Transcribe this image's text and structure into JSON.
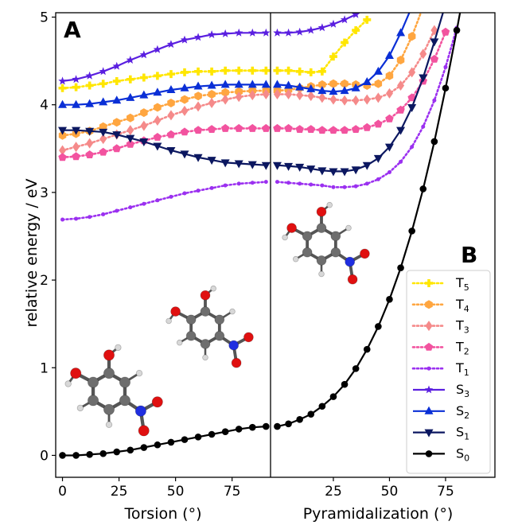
{
  "chart_data": {
    "type": "line",
    "ylabel": "relative energy / eV",
    "ylim": [
      -0.25,
      5.05
    ],
    "yticks": [
      "0",
      "1",
      "2",
      "3",
      "4",
      "5"
    ],
    "grid": false,
    "legend_position": "bottom-right",
    "panels": [
      {
        "label": "A",
        "xlabel": "Torsion (°)",
        "xlim": [
          -3,
          92
        ],
        "xticks": [
          "0",
          "25",
          "50",
          "75"
        ],
        "x": [
          0,
          6,
          12,
          18,
          24,
          30,
          36,
          42,
          48,
          54,
          60,
          66,
          72,
          78,
          84,
          90
        ],
        "series": [
          {
            "name": "T5",
            "values": [
              4.19,
              4.2,
              4.22,
              4.24,
              4.27,
              4.29,
              4.31,
              4.33,
              4.35,
              4.37,
              4.38,
              4.38,
              4.39,
              4.39,
              4.39,
              4.39
            ]
          },
          {
            "name": "T4",
            "values": [
              3.65,
              3.67,
              3.7,
              3.75,
              3.8,
              3.85,
              3.91,
              3.97,
              4.02,
              4.06,
              4.1,
              4.12,
              4.14,
              4.15,
              4.16,
              4.16
            ]
          },
          {
            "name": "T3",
            "values": [
              3.48,
              3.52,
              3.56,
              3.61,
              3.66,
              3.71,
              3.76,
              3.82,
              3.88,
              3.93,
              3.98,
              4.02,
              4.06,
              4.09,
              4.11,
              4.12
            ]
          },
          {
            "name": "T2",
            "values": [
              3.4,
              3.41,
              3.43,
              3.46,
              3.5,
              3.55,
              3.59,
              3.63,
              3.66,
              3.69,
              3.71,
              3.72,
              3.73,
              3.73,
              3.73,
              3.73
            ]
          },
          {
            "name": "T1",
            "values": [
              2.69,
              2.7,
              2.72,
              2.75,
              2.79,
              2.83,
              2.87,
              2.91,
              2.95,
              2.99,
              3.02,
              3.05,
              3.08,
              3.1,
              3.11,
              3.12
            ]
          },
          {
            "name": "S3",
            "values": [
              4.27,
              4.29,
              4.33,
              4.38,
              4.44,
              4.51,
              4.57,
              4.63,
              4.69,
              4.74,
              4.77,
              4.8,
              4.81,
              4.82,
              4.82,
              4.82
            ]
          },
          {
            "name": "S2",
            "values": [
              4.0,
              4.0,
              4.01,
              4.03,
              4.05,
              4.08,
              4.11,
              4.14,
              4.17,
              4.19,
              4.21,
              4.22,
              4.23,
              4.23,
              4.23,
              4.23
            ]
          },
          {
            "name": "S1",
            "values": [
              3.71,
              3.71,
              3.7,
              3.69,
              3.66,
              3.62,
              3.58,
              3.53,
              3.48,
              3.44,
              3.4,
              3.37,
              3.34,
              3.33,
              3.32,
              3.31
            ]
          },
          {
            "name": "S0",
            "values": [
              0.0,
              0.0,
              0.01,
              0.02,
              0.04,
              0.06,
              0.09,
              0.12,
              0.15,
              0.18,
              0.21,
              0.24,
              0.27,
              0.3,
              0.32,
              0.33
            ]
          }
        ]
      },
      {
        "label": "B",
        "xlabel": "Pyramidalization (°)",
        "xlim": [
          -3,
          97
        ],
        "xticks": [
          "25",
          "50",
          "75"
        ],
        "x": [
          0,
          5,
          10,
          15,
          20,
          25,
          30,
          35,
          40,
          45,
          50,
          55,
          60,
          65,
          70,
          75,
          80,
          85,
          90
        ],
        "series": [
          {
            "name": "T5",
            "values": [
              4.39,
              4.39,
              4.38,
              4.37,
              4.38,
              4.55,
              4.71,
              4.85,
              4.97,
              null,
              null,
              null,
              null,
              null,
              null,
              null,
              null,
              null,
              null
            ]
          },
          {
            "name": "T4",
            "values": [
              4.16,
              4.17,
              4.19,
              4.21,
              4.23,
              4.24,
              4.24,
              4.23,
              4.22,
              4.24,
              4.33,
              4.51,
              4.78,
              5.12,
              null,
              null,
              null,
              null,
              null
            ]
          },
          {
            "name": "T3",
            "values": [
              4.12,
              4.12,
              4.11,
              4.1,
              4.08,
              4.06,
              4.05,
              4.05,
              4.06,
              4.08,
              4.13,
              4.22,
              4.37,
              4.58,
              4.85,
              null,
              null,
              null,
              null
            ]
          },
          {
            "name": "T2",
            "values": [
              3.73,
              3.73,
              3.72,
              3.72,
              3.71,
              3.71,
              3.71,
              3.72,
              3.74,
              3.78,
              3.84,
              3.94,
              4.08,
              4.27,
              4.52,
              4.83,
              null,
              null,
              null
            ]
          },
          {
            "name": "T1",
            "values": [
              3.12,
              3.11,
              3.1,
              3.09,
              3.08,
              3.06,
              3.06,
              3.07,
              3.1,
              3.15,
              3.23,
              3.35,
              3.52,
              3.75,
              4.05,
              4.43,
              4.88,
              null,
              null
            ]
          },
          {
            "name": "S3",
            "values": [
              4.82,
              4.82,
              4.83,
              4.85,
              4.88,
              4.92,
              4.97,
              5.03,
              null,
              null,
              null,
              null,
              null,
              null,
              null,
              null,
              null,
              null,
              null
            ]
          },
          {
            "name": "S2",
            "values": [
              4.23,
              4.22,
              4.2,
              4.18,
              4.16,
              4.15,
              4.16,
              4.19,
              4.26,
              4.38,
              4.56,
              4.82,
              5.12,
              null,
              null,
              null,
              null,
              null,
              null
            ]
          },
          {
            "name": "S1",
            "values": [
              3.31,
              3.3,
              3.29,
              3.27,
              3.25,
              3.24,
              3.24,
              3.26,
              3.31,
              3.39,
              3.52,
              3.71,
              3.97,
              4.31,
              4.72,
              5.15,
              null,
              null,
              null
            ]
          },
          {
            "name": "S0",
            "values": [
              0.33,
              0.36,
              0.41,
              0.47,
              0.56,
              0.67,
              0.81,
              0.99,
              1.21,
              1.47,
              1.78,
              2.14,
              2.56,
              3.04,
              3.58,
              4.19,
              4.85,
              5.55,
              null
            ]
          }
        ]
      }
    ],
    "series_styles": {
      "T5": {
        "color": "#ffe600",
        "marker": "cross",
        "dashed": true
      },
      "T4": {
        "color": "#ffa640",
        "marker": "hexagon",
        "dashed": true
      },
      "T3": {
        "color": "#f58a8a",
        "marker": "diamond",
        "dashed": true
      },
      "T2": {
        "color": "#f2539f",
        "marker": "pentagon",
        "dashed": true
      },
      "T1": {
        "color": "#9b30f0",
        "marker": "smalldot",
        "dashed": true
      },
      "S3": {
        "color": "#5a1fe0",
        "marker": "star",
        "dashed": false
      },
      "S2": {
        "color": "#0a2fd6",
        "marker": "triangle-up",
        "dashed": false
      },
      "S1": {
        "color": "#0b1760",
        "marker": "triangle-down",
        "dashed": false
      },
      "S0": {
        "color": "#000000",
        "marker": "circle",
        "dashed": false
      }
    },
    "legend": [
      {
        "key": "T5",
        "base": "T",
        "sub": "5"
      },
      {
        "key": "T4",
        "base": "T",
        "sub": "4"
      },
      {
        "key": "T3",
        "base": "T",
        "sub": "3"
      },
      {
        "key": "T2",
        "base": "T",
        "sub": "2"
      },
      {
        "key": "T1",
        "base": "T",
        "sub": "1"
      },
      {
        "key": "S3",
        "base": "S",
        "sub": "3"
      },
      {
        "key": "S2",
        "base": "S",
        "sub": "2"
      },
      {
        "key": "S1",
        "base": "S",
        "sub": "1"
      },
      {
        "key": "S0",
        "base": "S",
        "sub": "0"
      }
    ],
    "colors": {
      "carbon": "#6e6e6e",
      "oxygen": "#e01010",
      "nitrogen": "#1f2ee0",
      "hydrogen": "#d8d8d8"
    }
  }
}
